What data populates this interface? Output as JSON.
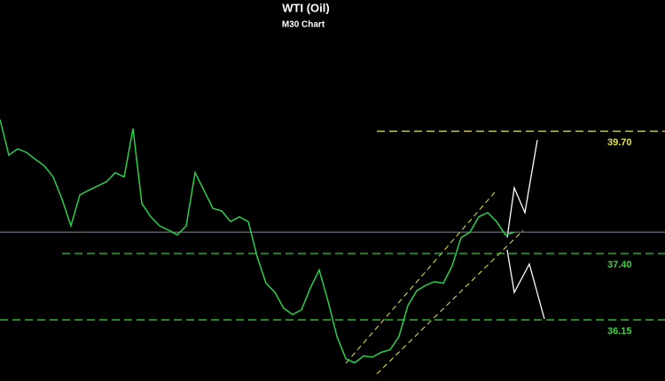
{
  "chart_data": {
    "type": "line",
    "title": "WTI (Oil)",
    "subtitle": "M30 Chart",
    "categories": [
      null,
      null,
      null,
      null,
      null,
      null,
      null,
      null,
      null,
      null,
      null,
      null,
      null,
      null,
      null,
      null,
      null,
      null,
      null,
      null,
      null,
      null,
      null,
      null,
      null,
      null,
      null,
      null,
      null,
      null,
      null,
      null,
      null,
      null,
      null,
      null,
      null,
      null,
      null,
      null,
      null,
      null,
      null,
      null,
      null,
      null,
      null,
      null,
      null,
      null,
      null,
      null,
      null,
      null,
      null,
      null,
      null,
      null,
      null
    ],
    "values": [
      39.92,
      39.25,
      39.37,
      39.3,
      39.17,
      39.05,
      38.84,
      38.42,
      37.92,
      38.5,
      38.59,
      38.67,
      38.75,
      38.92,
      38.84,
      39.75,
      38.34,
      38.09,
      37.92,
      37.84,
      37.75,
      37.92,
      38.92,
      38.59,
      38.25,
      38.2,
      38.0,
      38.09,
      38.0,
      37.34,
      36.84,
      36.67,
      36.37,
      36.25,
      36.34,
      36.75,
      37.09,
      36.5,
      35.84,
      35.42,
      35.34,
      35.47,
      35.45,
      35.54,
      35.59,
      35.84,
      36.42,
      36.7,
      36.8,
      36.87,
      36.84,
      37.17,
      37.7,
      37.8,
      38.09,
      38.17,
      38.0,
      37.75,
      37.8
    ],
    "color": "#2bd04a",
    "ylim": [
      35.0,
      42.17
    ],
    "price_line": 37.8,
    "levels": [
      {
        "value": 39.7,
        "label": "39.70",
        "color": "#e8e840"
      },
      {
        "value": 37.4,
        "label": "37.40",
        "color": "#3fd23f"
      },
      {
        "value": 36.15,
        "label": "36.15",
        "color": "#3fd23f"
      }
    ]
  }
}
